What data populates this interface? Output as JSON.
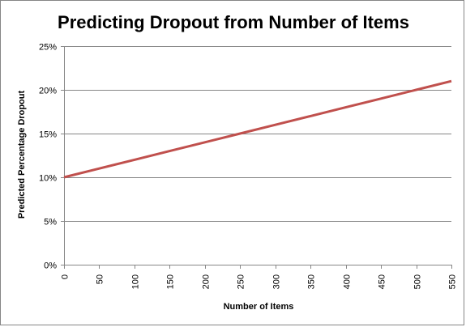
{
  "chart_data": {
    "type": "line",
    "title": "Predicting Dropout from Number of Items",
    "xlabel": "Number of Items",
    "ylabel": "Predicted Percentage Dropout",
    "x": [
      0,
      50,
      100,
      150,
      200,
      250,
      300,
      350,
      400,
      450,
      500,
      550
    ],
    "series": [
      {
        "values": [
          10,
          11,
          12,
          13,
          14,
          15,
          16,
          17,
          18,
          19,
          20,
          21
        ]
      }
    ],
    "xlim": [
      0,
      550
    ],
    "ylim": [
      0,
      25
    ],
    "x_ticks": [
      "0",
      "50",
      "100",
      "150",
      "200",
      "250",
      "300",
      "350",
      "400",
      "450",
      "500",
      "550"
    ],
    "y_ticks": [
      "0%",
      "5%",
      "10%",
      "15%",
      "20%",
      "25%"
    ],
    "y_tick_values": [
      0,
      5,
      10,
      15,
      20,
      25
    ],
    "grid": "horizontal",
    "legend": "none",
    "colors": {
      "line": "#C0504D",
      "grid": "#868686",
      "axis": "#868686"
    }
  }
}
